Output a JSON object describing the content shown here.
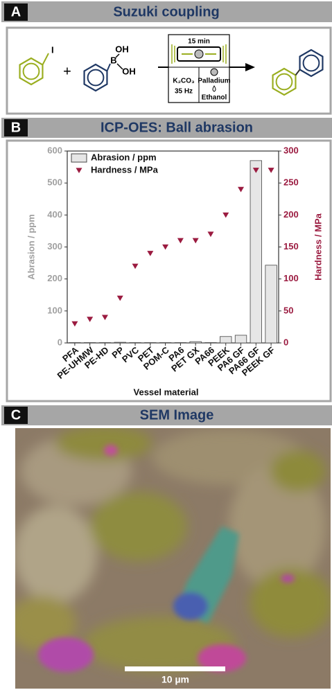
{
  "panel_a": {
    "label": "A",
    "title": "Suzuki coupling",
    "iodide": "I",
    "plus": "+",
    "boron": "B",
    "hydroxyl_top": "OH",
    "hydroxyl_right": "OH",
    "time": "15 min",
    "base": "K₂CO₃",
    "frequency": "35 Hz",
    "catalyst": "Palladium",
    "solvent": "Ethanol"
  },
  "panel_b": {
    "label": "B",
    "title": "ICP-OES: Ball abrasion"
  },
  "panel_c": {
    "label": "C",
    "title": "SEM Image",
    "scale_bar": "10 µm"
  },
  "chart_data": {
    "type": "bar",
    "categories": [
      "PFA",
      "PE-UHMW",
      "PE-HD",
      "PP",
      "PVC",
      "PET",
      "POM-C",
      "PA6",
      "PET GX",
      "PA66",
      "PEEK",
      "PA6 GF",
      "PA66 GF",
      "PEEK GF"
    ],
    "series": [
      {
        "name": "Abrasion / ppm",
        "type": "bar",
        "color": "#e6e6e6",
        "values": [
          1,
          1,
          1,
          2,
          1,
          1,
          1,
          1,
          4,
          1,
          20,
          24,
          570,
          243
        ]
      },
      {
        "name": "Hardness / MPa",
        "type": "scatter",
        "axis": "y2",
        "color": "#9b1b40",
        "values": [
          30,
          37,
          40,
          70,
          120,
          140,
          150,
          160,
          160,
          170,
          200,
          240,
          270,
          270
        ]
      }
    ],
    "xlabel": "Vessel material",
    "ylabel": "Abrasion / ppm",
    "y2label": "Hardness / MPa",
    "ylim": [
      0,
      600
    ],
    "yticks": [
      0,
      100,
      200,
      300,
      400,
      500,
      600
    ],
    "y2lim": [
      0,
      300
    ],
    "y2ticks": [
      0,
      50,
      100,
      150,
      200,
      250,
      300
    ],
    "legend": "upper left"
  }
}
